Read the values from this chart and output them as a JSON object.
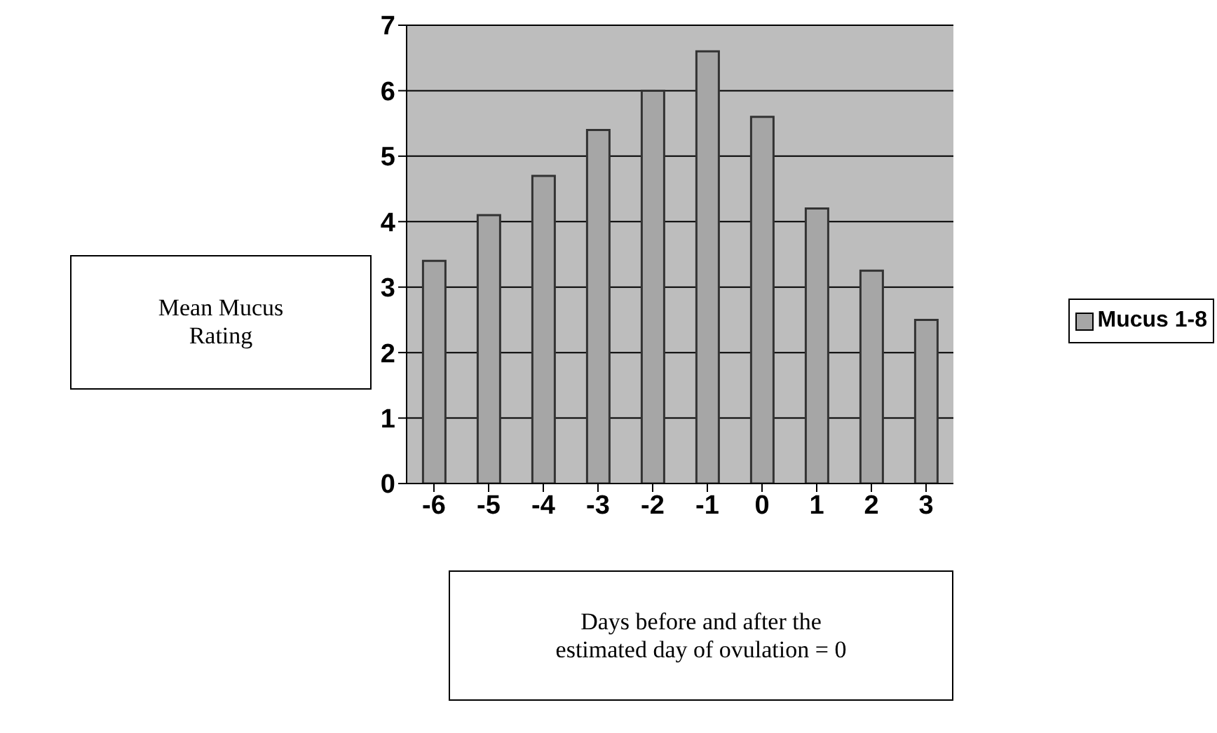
{
  "chart_data": {
    "type": "bar",
    "xlabel": "Days before and after the\nestimated day of ovulation = 0",
    "ylabel": "Mean Mucus\nRating",
    "categories": [
      "-6",
      "-5",
      "-4",
      "-3",
      "-2",
      "-1",
      "0",
      "1",
      "2",
      "3"
    ],
    "series": [
      {
        "name": "Mucus 1-8",
        "color": "#a6a6a6",
        "values": [
          3.4,
          4.1,
          4.7,
          5.4,
          6.0,
          6.6,
          5.6,
          4.2,
          3.25,
          2.5
        ]
      }
    ],
    "ylim": [
      0,
      7
    ],
    "yticks": [
      0,
      1,
      2,
      3,
      4,
      5,
      6,
      7
    ],
    "grid": "y",
    "legend": "right"
  }
}
